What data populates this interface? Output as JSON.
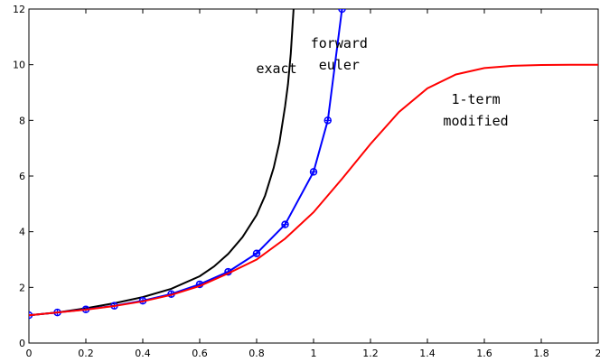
{
  "chart_data": {
    "type": "line",
    "title": "",
    "xlabel": "",
    "ylabel": "",
    "xlim": [
      0,
      2
    ],
    "ylim": [
      0,
      12
    ],
    "x_ticks": [
      "0",
      "0.2",
      "0.4",
      "0.6",
      "0.8",
      "1",
      "1.2",
      "1.4",
      "1.6",
      "1.8",
      "2"
    ],
    "y_ticks": [
      "0",
      "2",
      "4",
      "6",
      "8",
      "10",
      "12"
    ],
    "grid": false,
    "series": [
      {
        "color": "#000000",
        "marker": "none",
        "x": [
          0,
          0.1,
          0.2,
          0.3,
          0.4,
          0.5,
          0.6,
          0.65,
          0.7,
          0.75,
          0.8,
          0.83,
          0.86,
          0.88,
          0.9,
          0.91,
          0.92,
          0.93
        ],
        "y": [
          1,
          1.1,
          1.25,
          1.43,
          1.65,
          1.95,
          2.4,
          2.75,
          3.2,
          3.8,
          4.6,
          5.3,
          6.3,
          7.2,
          8.5,
          9.3,
          10.4,
          12
        ]
      },
      {
        "color": "#0000ff",
        "marker": "circle-plus",
        "x": [
          0,
          0.1,
          0.2,
          0.3,
          0.4,
          0.5,
          0.6,
          0.7,
          0.8,
          0.9,
          1.0,
          1.05,
          1.1
        ],
        "y": [
          1,
          1.1,
          1.21,
          1.34,
          1.52,
          1.76,
          2.11,
          2.56,
          3.22,
          4.26,
          6.15,
          8.0,
          12
        ]
      },
      {
        "color": "#ff0000",
        "marker": "none",
        "x": [
          0,
          0.1,
          0.2,
          0.3,
          0.4,
          0.5,
          0.6,
          0.7,
          0.8,
          0.9,
          1.0,
          1.1,
          1.2,
          1.3,
          1.4,
          1.5,
          1.6,
          1.7,
          1.8,
          1.9,
          2.0
        ],
        "y": [
          1,
          1.1,
          1.2,
          1.33,
          1.5,
          1.73,
          2.05,
          2.5,
          3.0,
          3.75,
          4.7,
          5.9,
          7.15,
          8.3,
          9.15,
          9.65,
          9.88,
          9.96,
          9.99,
          10,
          10
        ]
      }
    ],
    "annotations": [
      {
        "lines": [
          "exact"
        ],
        "x": 0.87,
        "y": 9.7
      },
      {
        "lines": [
          "forward",
          "euler"
        ],
        "x": 1.09,
        "y": 10.6
      },
      {
        "lines": [
          "1-term",
          "modified"
        ],
        "x": 1.57,
        "y": 8.6
      }
    ]
  }
}
